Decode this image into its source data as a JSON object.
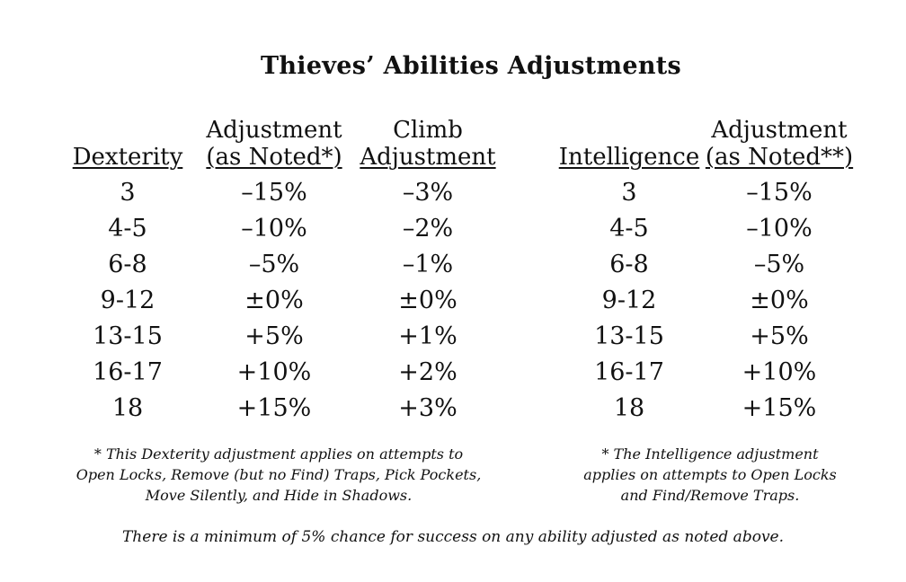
{
  "title": "Thieves’ Abilities Adjustments",
  "dex_table": {
    "headers": {
      "dexterity": "Dexterity",
      "adj_line1": "Adjustment",
      "adj_line2": "(as Noted*)",
      "climb_line1": "Climb",
      "climb_line2": "Adjustment"
    },
    "rows": [
      {
        "score": "3",
        "adj": "–15%",
        "climb": "–3%"
      },
      {
        "score": "4-5",
        "adj": "–10%",
        "climb": "–2%"
      },
      {
        "score": "6-8",
        "adj": "–5%",
        "climb": "–1%"
      },
      {
        "score": "9-12",
        "adj": "±0%",
        "climb": "±0%"
      },
      {
        "score": "13-15",
        "adj": "+5%",
        "climb": "+1%"
      },
      {
        "score": "16-17",
        "adj": "+10%",
        "climb": "+2%"
      },
      {
        "score": "18",
        "adj": "+15%",
        "climb": "+3%"
      }
    ],
    "note": [
      "* This Dexterity adjustment applies on attempts to",
      "Open Locks, Remove (but no Find) Traps, Pick Pockets,",
      "Move Silently, and Hide in Shadows."
    ]
  },
  "int_table": {
    "headers": {
      "intelligence": "Intelligence",
      "adj_line1": "Adjustment",
      "adj_line2": "(as Noted**)"
    },
    "rows": [
      {
        "score": "3",
        "adj": "–15%"
      },
      {
        "score": "4-5",
        "adj": "–10%"
      },
      {
        "score": "6-8",
        "adj": "–5%"
      },
      {
        "score": "9-12",
        "adj": "±0%"
      },
      {
        "score": "13-15",
        "adj": "+5%"
      },
      {
        "score": "16-17",
        "adj": "+10%"
      },
      {
        "score": "18",
        "adj": "+15%"
      }
    ],
    "note": [
      "* The Intelligence adjustment",
      "applies on attempts to Open Locks",
      "and Find/Remove Traps."
    ]
  },
  "footer": "There is a minimum of 5% chance for success on any ability adjusted as noted above."
}
